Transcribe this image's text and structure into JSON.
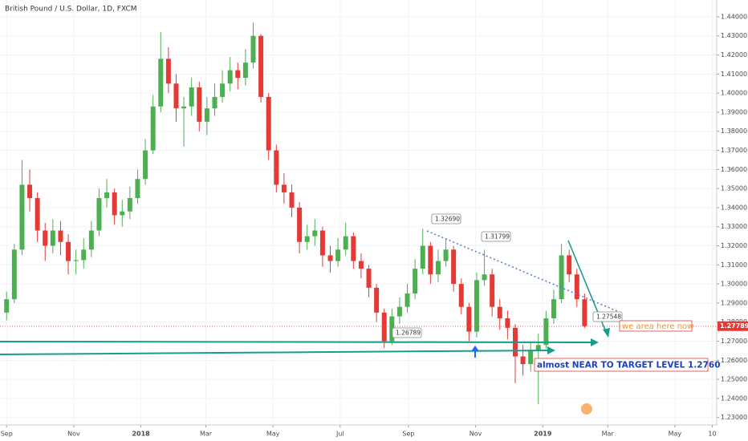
{
  "chart_data": {
    "type": "candlestick",
    "title": "British Pound / U.S. Dollar, 1D, FXCM",
    "x": [
      0,
      7,
      14,
      21,
      28,
      35,
      42,
      49,
      56,
      63,
      70,
      77,
      84,
      91,
      98,
      105,
      112,
      119,
      126,
      133,
      140,
      147,
      154,
      161,
      168,
      175,
      182,
      189,
      196,
      203,
      210,
      217,
      224,
      231,
      238,
      245,
      252,
      259,
      266,
      273,
      280,
      287,
      294,
      301,
      308,
      315,
      322,
      329,
      336,
      343,
      350,
      357,
      364,
      371,
      378,
      385,
      392,
      399,
      406,
      413,
      420,
      427,
      434,
      441,
      448,
      455,
      462,
      469,
      476,
      483,
      490,
      497,
      504,
      511,
      518,
      525
    ],
    "open": [
      1.285,
      1.292,
      1.318,
      1.352,
      1.345,
      1.328,
      1.32,
      1.328,
      1.322,
      1.312,
      1.3125,
      1.318,
      1.328,
      1.345,
      1.348,
      1.336,
      1.338,
      1.345,
      1.355,
      1.37,
      1.393,
      1.418,
      1.405,
      1.392,
      1.393,
      1.403,
      1.385,
      1.392,
      1.398,
      1.405,
      1.412,
      1.408,
      1.416,
      1.43,
      1.398,
      1.37,
      1.352,
      1.348,
      1.34,
      1.322,
      1.325,
      1.328,
      1.315,
      1.312,
      1.318,
      1.325,
      1.312,
      1.308,
      1.298,
      1.285,
      1.27,
      1.283,
      1.288,
      1.295,
      1.308,
      1.32,
      1.305,
      1.312,
      1.318,
      1.3,
      1.288,
      1.275,
      1.302,
      1.305,
      1.288,
      1.282,
      1.277,
      1.262,
      1.258,
      1.265,
      1.268,
      1.282,
      1.292,
      1.315,
      1.305,
      1.292
    ],
    "high": [
      1.296,
      1.321,
      1.365,
      1.36,
      1.348,
      1.332,
      1.334,
      1.333,
      1.326,
      1.318,
      1.324,
      1.333,
      1.35,
      1.355,
      1.35,
      1.344,
      1.351,
      1.36,
      1.376,
      1.399,
      1.432,
      1.424,
      1.41,
      1.398,
      1.408,
      1.406,
      1.398,
      1.405,
      1.412,
      1.419,
      1.416,
      1.423,
      1.437,
      1.431,
      1.4,
      1.373,
      1.358,
      1.352,
      1.343,
      1.331,
      1.334,
      1.33,
      1.32,
      1.324,
      1.332,
      1.327,
      1.316,
      1.31,
      1.3,
      1.287,
      1.287,
      1.293,
      1.3,
      1.313,
      1.329,
      1.322,
      1.318,
      1.324,
      1.32,
      1.303,
      1.29,
      1.306,
      1.318,
      1.308,
      1.292,
      1.286,
      1.279,
      1.268,
      1.27,
      1.274,
      1.286,
      1.297,
      1.321,
      1.318,
      1.308,
      1.295
    ],
    "low": [
      1.281,
      1.29,
      1.315,
      1.338,
      1.322,
      1.312,
      1.316,
      1.315,
      1.305,
      1.305,
      1.308,
      1.314,
      1.325,
      1.34,
      1.331,
      1.33,
      1.334,
      1.342,
      1.352,
      1.368,
      1.39,
      1.4,
      1.385,
      1.372,
      1.388,
      1.38,
      1.378,
      1.388,
      1.395,
      1.401,
      1.402,
      1.404,
      1.413,
      1.395,
      1.365,
      1.348,
      1.342,
      1.335,
      1.316,
      1.318,
      1.32,
      1.309,
      1.306,
      1.309,
      1.315,
      1.308,
      1.303,
      1.293,
      1.28,
      1.2665,
      1.268,
      1.279,
      1.285,
      1.292,
      1.305,
      1.3,
      1.301,
      1.309,
      1.296,
      1.284,
      1.27,
      1.272,
      1.299,
      1.283,
      1.276,
      1.271,
      1.248,
      1.252,
      1.254,
      1.237,
      1.266,
      1.279,
      1.29,
      1.301,
      1.288,
      1.277
    ],
    "close": [
      1.292,
      1.318,
      1.352,
      1.345,
      1.328,
      1.32,
      1.328,
      1.322,
      1.312,
      1.3125,
      1.318,
      1.328,
      1.345,
      1.348,
      1.336,
      1.338,
      1.345,
      1.355,
      1.37,
      1.393,
      1.418,
      1.405,
      1.392,
      1.393,
      1.403,
      1.385,
      1.392,
      1.398,
      1.405,
      1.412,
      1.408,
      1.416,
      1.43,
      1.398,
      1.37,
      1.352,
      1.348,
      1.34,
      1.322,
      1.325,
      1.328,
      1.315,
      1.312,
      1.318,
      1.325,
      1.312,
      1.308,
      1.298,
      1.285,
      1.27,
      1.283,
      1.288,
      1.295,
      1.308,
      1.32,
      1.305,
      1.312,
      1.318,
      1.3,
      1.288,
      1.275,
      1.302,
      1.305,
      1.288,
      1.282,
      1.277,
      1.262,
      1.258,
      1.265,
      1.268,
      1.282,
      1.292,
      1.315,
      1.305,
      1.292,
      1.2779
    ],
    "up_color": "#4caf50",
    "down_color": "#e53935",
    "last_price": 1.27789,
    "last_price_color": "#e53935",
    "xlim": [
      -6,
      645
    ],
    "xticks": [
      {
        "value": 0,
        "label": "Sep"
      },
      {
        "value": 61,
        "label": "Nov"
      },
      {
        "value": 122,
        "label": "2018"
      },
      {
        "value": 181,
        "label": "Mar"
      },
      {
        "value": 242,
        "label": "May"
      },
      {
        "value": 303,
        "label": "Jul"
      },
      {
        "value": 365,
        "label": "Sep"
      },
      {
        "value": 426,
        "label": "Nov"
      },
      {
        "value": 487,
        "label": "2019"
      },
      {
        "value": 546,
        "label": "Mar"
      },
      {
        "value": 607,
        "label": "May"
      },
      {
        "value": 641,
        "label": "10"
      }
    ],
    "ylim": [
      1.2261,
      1.4488
    ],
    "yticks": [
      {
        "value": 1.23,
        "label": "1.23000"
      },
      {
        "value": 1.24,
        "label": "1.24000"
      },
      {
        "value": 1.25,
        "label": "1.25000"
      },
      {
        "value": 1.26,
        "label": "1.26000"
      },
      {
        "value": 1.27,
        "label": "1.27000"
      },
      {
        "value": 1.28,
        "label": "1.28000"
      },
      {
        "value": 1.29,
        "label": "1.29000"
      },
      {
        "value": 1.3,
        "label": "1.30000"
      },
      {
        "value": 1.31,
        "label": "1.31000"
      },
      {
        "value": 1.32,
        "label": "1.32000"
      },
      {
        "value": 1.33,
        "label": "1.33000"
      },
      {
        "value": 1.34,
        "label": "1.34000"
      },
      {
        "value": 1.35,
        "label": "1.35000"
      },
      {
        "value": 1.36,
        "label": "1.36000"
      },
      {
        "value": 1.37,
        "label": "1.37000"
      },
      {
        "value": 1.38,
        "label": "1.38000"
      },
      {
        "value": 1.39,
        "label": "1.39000"
      },
      {
        "value": 1.4,
        "label": "1.40000"
      },
      {
        "value": 1.41,
        "label": "1.41000"
      },
      {
        "value": 1.42,
        "label": "1.42000"
      },
      {
        "value": 1.43,
        "label": "1.43000"
      },
      {
        "value": 1.44,
        "label": "1.44000"
      }
    ],
    "grid": true,
    "price_labels": [
      "1.32690",
      "1.31799",
      "1.26789",
      "1.27548"
    ],
    "annotations": [
      "we area here now",
      "almost NEAR TO TARGET LEVEL 1.2760"
    ]
  }
}
